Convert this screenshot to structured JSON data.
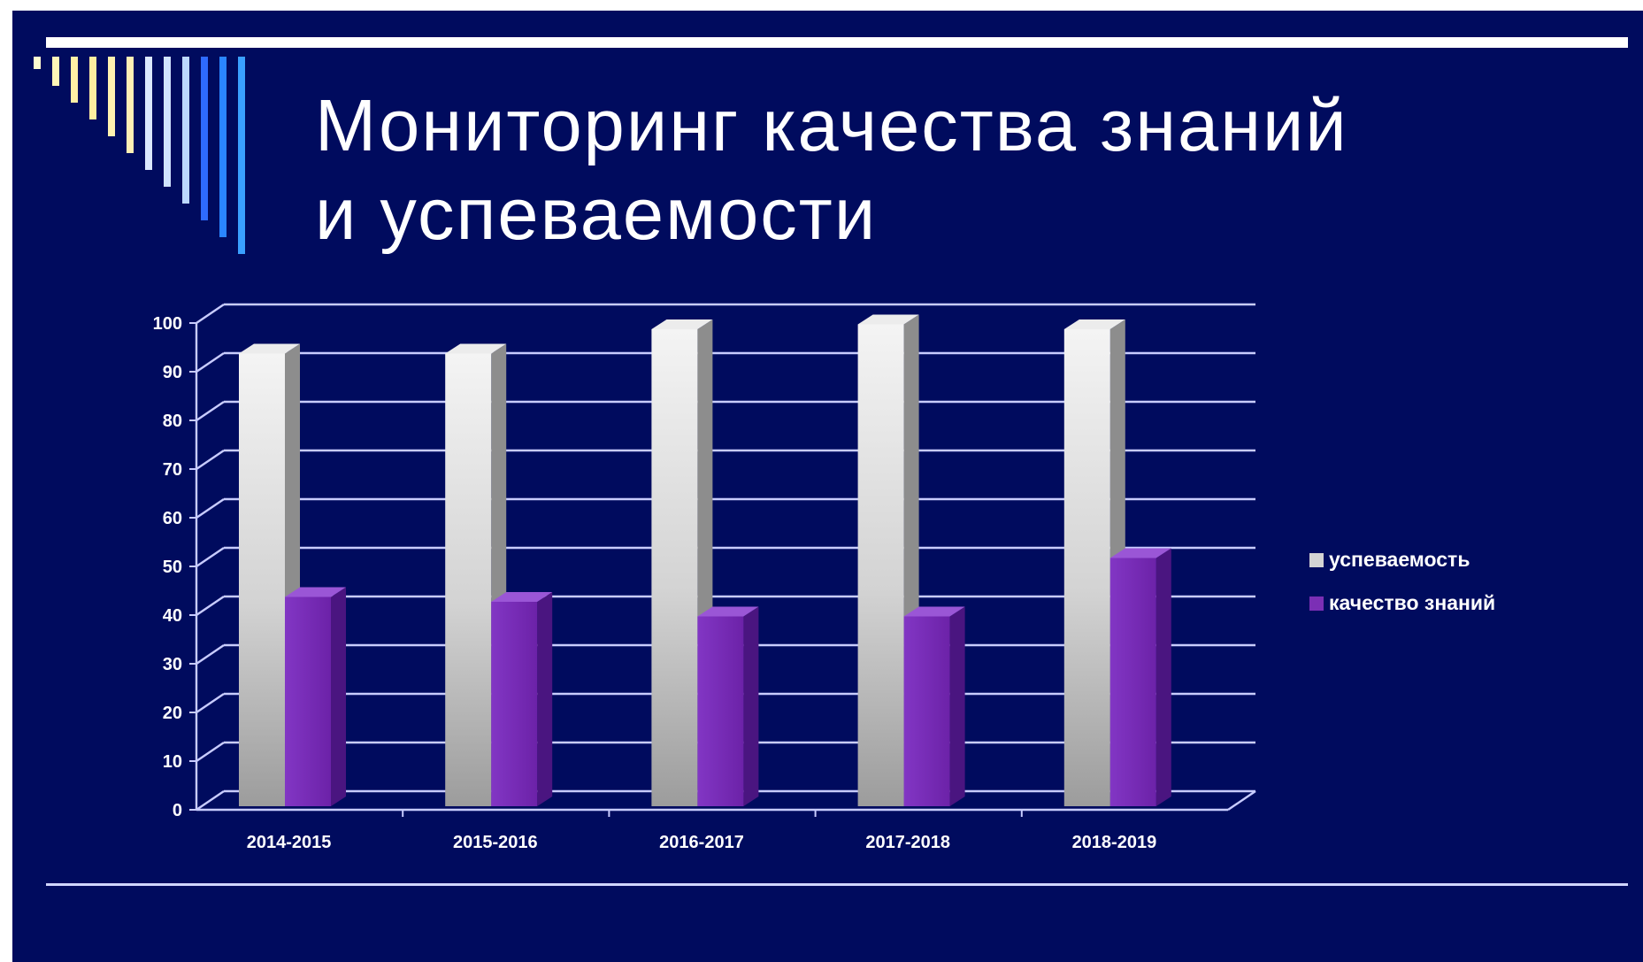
{
  "slide": {
    "title_line1": "Мониторинг качества знаний",
    "title_line2": "и успеваемости"
  },
  "colors": {
    "background": "#000b5e",
    "gridline": "#c8ccff",
    "series_uspevaemost": "#d4d4d4",
    "series_kachestvo": "#7b2fb5",
    "stripes": [
      "#fffbd0",
      "#fff5b8",
      "#fff0a6",
      "#ffeea0",
      "#fff2b0",
      "#ffefb5",
      "#dbe8ff",
      "#d0e4ff",
      "#bcd8ff",
      "#2e6bff",
      "#2a86ff",
      "#3aa0ff"
    ]
  },
  "chart_data": {
    "type": "bar",
    "style": "3d-clustered-column",
    "categories": [
      "2014-2015",
      "2015-2016",
      "2016-2017",
      "2017-2018",
      "2018-2019"
    ],
    "series": [
      {
        "name": "успеваемость",
        "values": [
          93,
          93,
          98,
          99,
          98
        ]
      },
      {
        "name": "качество знаний",
        "values": [
          43,
          42,
          39,
          39,
          51
        ]
      }
    ],
    "ylim": [
      0,
      100
    ],
    "yticks": [
      0,
      10,
      20,
      30,
      40,
      50,
      60,
      70,
      80,
      90,
      100
    ],
    "grid": true,
    "legend_position": "right"
  }
}
